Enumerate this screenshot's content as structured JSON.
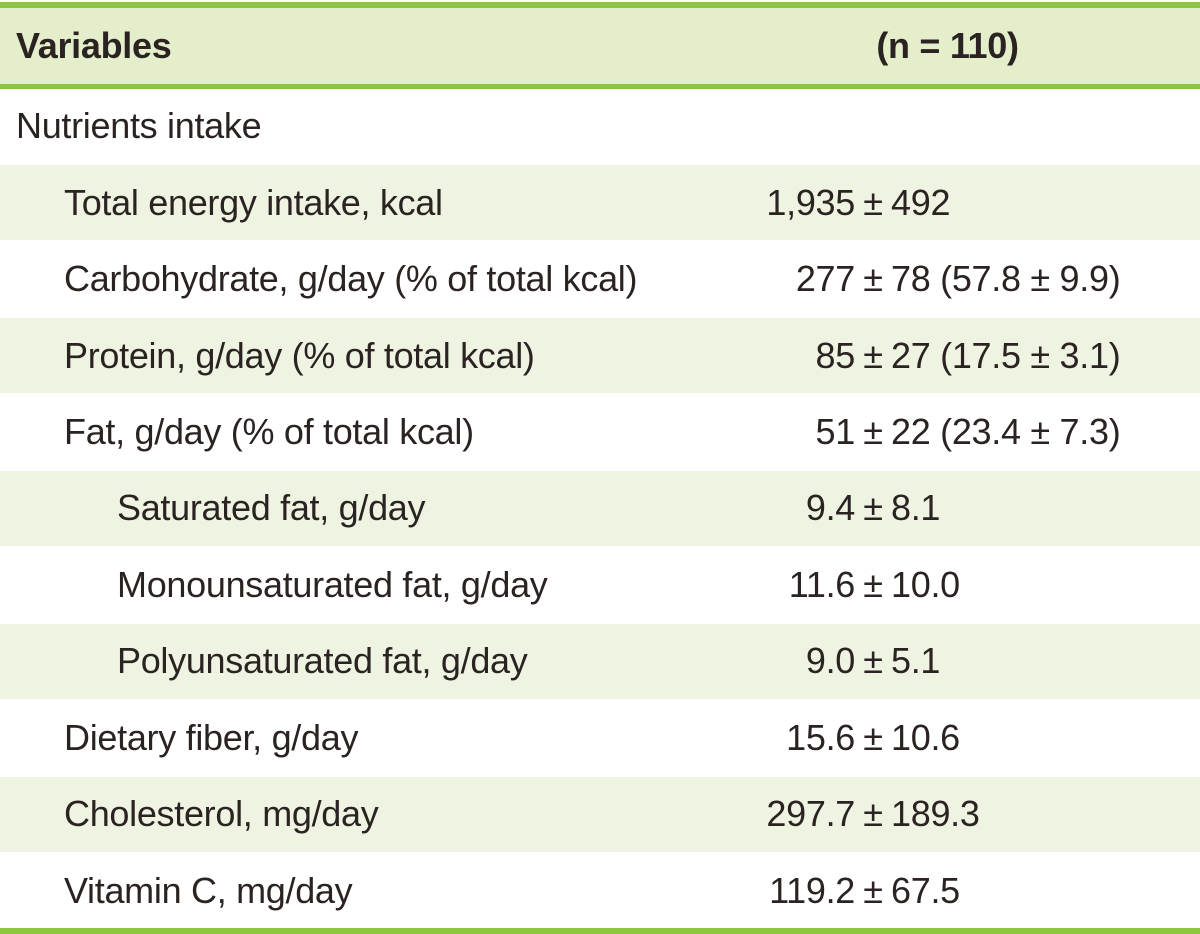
{
  "table": {
    "plus_minus": "±",
    "colors": {
      "accent_green": "#8cc63f",
      "header_bg": "#e4eecb",
      "row_shade_bg": "#eef3e2",
      "text": "#2a2321"
    },
    "header": {
      "variables_label": "Variables",
      "n_label": "(n = 110)"
    },
    "rows": [
      {
        "label": "Nutrients intake",
        "indent": 0,
        "shaded": false,
        "mean": "",
        "sd": ""
      },
      {
        "label": "Total energy intake, kcal",
        "indent": 1,
        "shaded": true,
        "mean": "1,935",
        "sd": "492"
      },
      {
        "label": "Carbohydrate, g/day (% of total kcal)",
        "indent": 1,
        "shaded": false,
        "mean": "277",
        "sd": "78 (57.8 ± 9.9)"
      },
      {
        "label": "Protein, g/day (% of total kcal)",
        "indent": 1,
        "shaded": true,
        "mean": "85",
        "sd": "27 (17.5 ± 3.1)"
      },
      {
        "label": "Fat, g/day (% of total kcal)",
        "indent": 1,
        "shaded": false,
        "mean": "51",
        "sd": "22 (23.4 ± 7.3)"
      },
      {
        "label": "Saturated fat, g/day",
        "indent": 2,
        "shaded": true,
        "mean": "9.4",
        "sd": "8.1"
      },
      {
        "label": "Monounsaturated fat, g/day",
        "indent": 2,
        "shaded": false,
        "mean": "11.6",
        "sd": "10.0"
      },
      {
        "label": "Polyunsaturated fat, g/day",
        "indent": 2,
        "shaded": true,
        "mean": "9.0",
        "sd": "5.1"
      },
      {
        "label": "Dietary fiber, g/day",
        "indent": 1,
        "shaded": false,
        "mean": "15.6",
        "sd": "10.6"
      },
      {
        "label": "Cholesterol, mg/day",
        "indent": 1,
        "shaded": true,
        "mean": "297.7",
        "sd": "189.3"
      },
      {
        "label": "Vitamin C, mg/day",
        "indent": 1,
        "shaded": false,
        "mean": "119.2",
        "sd": "67.5"
      }
    ]
  }
}
